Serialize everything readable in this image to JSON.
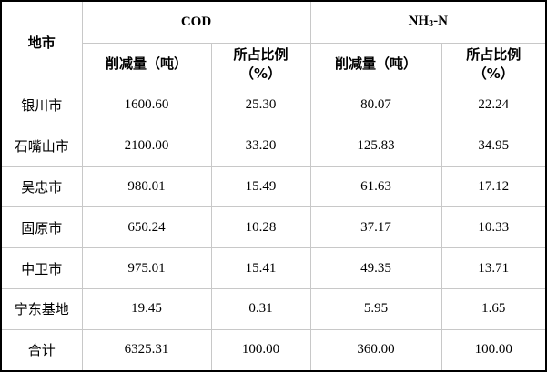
{
  "table": {
    "header": {
      "city": "地市",
      "group1": "COD",
      "group2_main": "NH",
      "group2_sub": "3",
      "group2_tail": "-N",
      "reduction": "削减量（吨）",
      "ratio_line1": "所占比例",
      "ratio_line2": "（%）"
    },
    "rows": [
      {
        "city": "银川市",
        "cod_t": "1600.60",
        "cod_p": "25.30",
        "nh_t": "80.07",
        "nh_p": "22.24"
      },
      {
        "city": "石嘴山市",
        "cod_t": "2100.00",
        "cod_p": "33.20",
        "nh_t": "125.83",
        "nh_p": "34.95"
      },
      {
        "city": "吴忠市",
        "cod_t": "980.01",
        "cod_p": "15.49",
        "nh_t": "61.63",
        "nh_p": "17.12"
      },
      {
        "city": "固原市",
        "cod_t": "650.24",
        "cod_p": "10.28",
        "nh_t": "37.17",
        "nh_p": "10.33"
      },
      {
        "city": "中卫市",
        "cod_t": "975.01",
        "cod_p": "15.41",
        "nh_t": "49.35",
        "nh_p": "13.71"
      },
      {
        "city": "宁东基地",
        "cod_t": "19.45",
        "cod_p": "0.31",
        "nh_t": "5.95",
        "nh_p": "1.65"
      },
      {
        "city": "合计",
        "cod_t": "6325.31",
        "cod_p": "100.00",
        "nh_t": "360.00",
        "nh_p": "100.00"
      }
    ]
  }
}
